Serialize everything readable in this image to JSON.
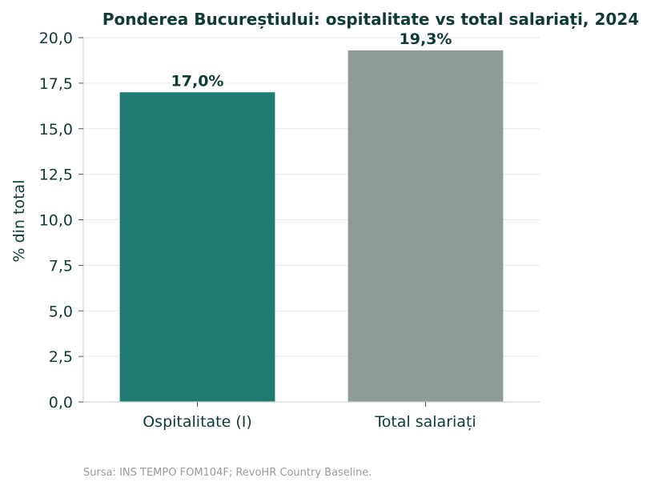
{
  "chart_data": {
    "type": "bar",
    "title": "Ponderea Bucureștiului: ospitalitate vs total salariați, 2024",
    "ylabel": "% din total",
    "xlabel": "",
    "categories": [
      "Ospitalitate (I)",
      "Total salariați"
    ],
    "values": [
      17.0,
      19.3
    ],
    "value_labels": [
      "17,0%",
      "19,3%"
    ],
    "ylim": [
      0,
      20
    ],
    "yticks": [
      0,
      2.5,
      5,
      7.5,
      10,
      12.5,
      15,
      17.5,
      20
    ],
    "ytick_labels": [
      "0,0",
      "2,5",
      "5,0",
      "7,5",
      "10,0",
      "12,5",
      "15,0",
      "17,5",
      "20,0"
    ],
    "colors": [
      "#1f7a70",
      "#8f9b98"
    ],
    "grid": "horizontal",
    "source": "Sursa: INS TEMPO FOM104F; RevoHR Country Baseline."
  }
}
